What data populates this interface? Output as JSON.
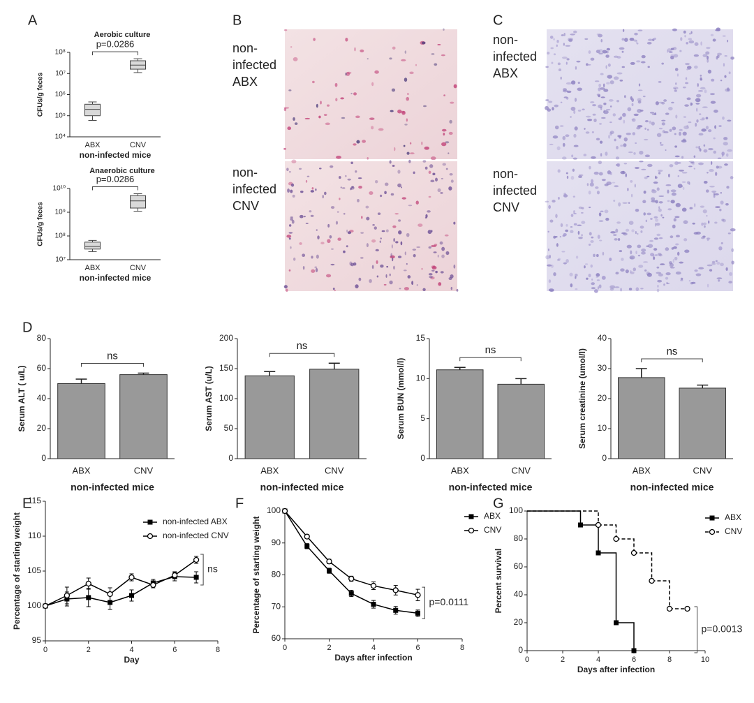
{
  "panel_labels": [
    "A",
    "B",
    "C",
    "D",
    "E",
    "F",
    "G"
  ],
  "micrographs": [
    {
      "images": [
        {
          "caption": [
            "non-",
            "infected",
            "ABX"
          ]
        },
        {
          "caption": [
            "non-",
            "infected",
            "CNV"
          ]
        }
      ]
    },
    {
      "images": [
        {
          "caption": [
            "non-",
            "infected",
            "ABX"
          ]
        },
        {
          "caption": [
            "non-",
            "infected",
            "CNV"
          ]
        }
      ]
    }
  ],
  "chart_data": [
    {
      "type": "box",
      "title": "Aerobic culture",
      "annotation": "p=0.0286",
      "ylabel": "CFUs/g feces",
      "xlabel": "non-infected mice",
      "categories": [
        "ABX",
        "CNV"
      ],
      "boxes": [
        {
          "whislo": 60000,
          "q1": 100000,
          "med": 200000,
          "q3": 350000,
          "whishi": 450000
        },
        {
          "whislo": 11000000,
          "q1": 16000000,
          "med": 25000000,
          "q3": 40000000,
          "whishi": 50000000
        }
      ],
      "color": "#d9d9d9",
      "yscale": "log",
      "ylim": [
        10000,
        100000000
      ],
      "yticks": [
        {
          "value": 10000,
          "label": "10⁴"
        },
        {
          "value": 100000,
          "label": "10⁵"
        },
        {
          "value": 1000000,
          "label": "10⁶"
        },
        {
          "value": 10000000,
          "label": "10⁷"
        },
        {
          "value": 100000000,
          "label": "10⁸"
        }
      ]
    },
    {
      "type": "box",
      "title": "Anaerobic culture",
      "annotation": "p=0.0286",
      "ylabel": "CFUs/g feces",
      "xlabel": "non-infected mice",
      "categories": [
        "ABX",
        "CNV"
      ],
      "boxes": [
        {
          "whislo": 22000000,
          "q1": 28000000,
          "med": 36000000,
          "q3": 55000000,
          "whishi": 65000000
        },
        {
          "whislo": 1100000000,
          "q1": 1500000000,
          "med": 3000000000,
          "q3": 5000000000,
          "whishi": 6000000000
        }
      ],
      "color": "#d9d9d9",
      "yscale": "log",
      "ylim": [
        10000000,
        10000000000
      ],
      "yticks": [
        {
          "value": 10000000,
          "label": "10⁷"
        },
        {
          "value": 100000000,
          "label": "10⁸"
        },
        {
          "value": 1000000000,
          "label": "10⁹"
        },
        {
          "value": 10000000000,
          "label": "10¹⁰"
        }
      ]
    },
    {
      "type": "bar",
      "annotation": "ns",
      "ylabel": "Serum ALT ( u/L)",
      "xlabel": "non-infected mice",
      "categories": [
        "ABX",
        "CNV"
      ],
      "values": [
        50,
        56
      ],
      "errors": [
        3,
        1
      ],
      "color": "#999999",
      "ylim": [
        0,
        80
      ],
      "yticks": [
        0,
        20,
        40,
        60,
        80
      ]
    },
    {
      "type": "bar",
      "annotation": "ns",
      "ylabel": "Serum AST (u/L)",
      "xlabel": "non-infected mice",
      "categories": [
        "ABX",
        "CNV"
      ],
      "values": [
        138,
        149
      ],
      "errors": [
        7,
        10
      ],
      "color": "#999999",
      "ylim": [
        0,
        200
      ],
      "yticks": [
        0,
        50,
        100,
        150,
        200
      ]
    },
    {
      "type": "bar",
      "annotation": "ns",
      "ylabel": "Serum BUN (mmol/l)",
      "xlabel": "non-infected mice",
      "categories": [
        "ABX",
        "CNV"
      ],
      "values": [
        11.1,
        9.3
      ],
      "errors": [
        0.3,
        0.7
      ],
      "color": "#999999",
      "ylim": [
        0,
        15
      ],
      "yticks": [
        0,
        5,
        10,
        15
      ]
    },
    {
      "type": "bar",
      "annotation": "ns",
      "ylabel": "Serum creatinine (umol/l)",
      "xlabel": "non-infected mice",
      "categories": [
        "ABX",
        "CNV"
      ],
      "values": [
        27,
        23.5
      ],
      "errors": [
        3,
        1
      ],
      "color": "#999999",
      "ylim": [
        0,
        40
      ],
      "yticks": [
        0,
        10,
        20,
        30,
        40
      ]
    },
    {
      "type": "line",
      "annotation": "ns",
      "ylabel": "Percentage of starting weight",
      "xlabel": "Day",
      "legend": "upper right",
      "x": [
        0,
        1,
        2,
        3,
        4,
        5,
        6,
        7
      ],
      "series": [
        {
          "name": "non-infected ABX",
          "color": "#000000",
          "marker": "square",
          "values": [
            100,
            101,
            101.2,
            100.5,
            101.5,
            103.3,
            104.2,
            104.1
          ],
          "errors": [
            0.3,
            1,
            1.3,
            1,
            0.8,
            0.5,
            0.6,
            0.8
          ]
        },
        {
          "name": "non-infected CNV",
          "color": "#000000",
          "marker": "circle",
          "values": [
            100,
            101.5,
            103.2,
            101.7,
            104.1,
            103,
            104.4,
            106.6
          ],
          "errors": [
            0.3,
            1.2,
            0.8,
            0.9,
            0.5,
            0.4,
            0.5,
            0.5
          ]
        }
      ],
      "xlim": [
        0,
        8
      ],
      "xticks": [
        0,
        2,
        4,
        6,
        8
      ],
      "ylim": [
        95,
        115
      ],
      "yticks": [
        95,
        100,
        105,
        110,
        115
      ]
    },
    {
      "type": "line",
      "annotation": "p=0.0111",
      "ylabel": "Percentage of starting weight",
      "xlabel": "Days after infection",
      "legend": "upper right",
      "x": [
        0,
        1,
        2,
        3,
        4,
        5,
        6
      ],
      "series": [
        {
          "name": "ABX",
          "color": "#000000",
          "marker": "square",
          "values": [
            100,
            89,
            81.3,
            74.2,
            70.8,
            68.9,
            68
          ],
          "errors": [
            0,
            0.8,
            0.8,
            1,
            1.2,
            1.2,
            1
          ]
        },
        {
          "name": "CNV",
          "color": "#000000",
          "marker": "circle",
          "values": [
            100,
            92,
            84.2,
            78.8,
            76.6,
            75.2,
            73.7
          ],
          "errors": [
            0,
            0.6,
            0.7,
            0.8,
            1.2,
            1.5,
            1.8
          ]
        }
      ],
      "xlim": [
        0,
        8
      ],
      "xticks": [
        0,
        2,
        4,
        6,
        8
      ],
      "ylim": [
        60,
        100
      ],
      "yticks": [
        60,
        70,
        80,
        90,
        100
      ]
    },
    {
      "type": "step",
      "annotation": "p=0.0013",
      "ylabel": "Percent survival",
      "xlabel": "Days after infection",
      "legend": "upper right",
      "series": [
        {
          "name": "ABX",
          "color": "#000000",
          "marker": "square",
          "linestyle": "solid",
          "x": [
            0,
            3,
            4,
            5,
            6
          ],
          "values": [
            100,
            90,
            70,
            20,
            0
          ]
        },
        {
          "name": "CNV",
          "color": "#000000",
          "marker": "circle",
          "linestyle": "dashed",
          "x": [
            0,
            4,
            5,
            6,
            7,
            8,
            9
          ],
          "values": [
            100,
            90,
            80,
            70,
            50,
            30,
            30
          ]
        }
      ],
      "xlim": [
        0,
        10
      ],
      "xticks": [
        0,
        2,
        4,
        6,
        8,
        10
      ],
      "ylim": [
        0,
        100
      ],
      "yticks": [
        0,
        20,
        40,
        60,
        80,
        100
      ]
    }
  ]
}
